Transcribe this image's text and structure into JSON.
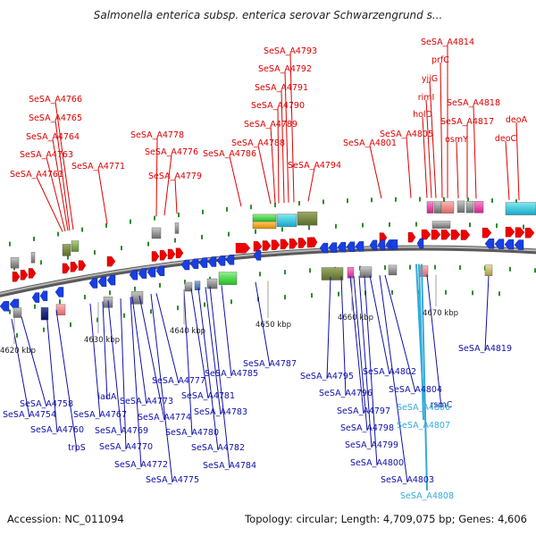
{
  "title": "Salmonella enterica subsp. enterica serovar Schwarzengrund s...",
  "footer": {
    "accession": "Accession: NC_011094",
    "summary": "Topology: circular; Length: 4,709,075 bp; Genes: 4,606"
  },
  "scale_ticks": [
    "4620 kbp",
    "4630 kbp",
    "4640 kbp",
    "4650 kbp",
    "4660 kbp",
    "4670 kbp"
  ],
  "colors": {
    "forward_label": "#dd0000",
    "reverse_label": "#1010aa",
    "highlight_label": "#33aadd",
    "forward_arrow": "#ee0000",
    "reverse_arrow": "#1a3fe0",
    "backbone": "#7d7d7d"
  },
  "forward_genes": [
    "SeSA_A4761",
    "SeSA_A4763",
    "SeSA_A4764",
    "SeSA_A4765",
    "SeSA_A4766",
    "SeSA_A4771",
    "SeSA_A4776",
    "SeSA_A4778",
    "SeSA_A4779",
    "SeSA_A4786",
    "SeSA_A4788",
    "SeSA_A4789",
    "SeSA_A4790",
    "SeSA_A4791",
    "SeSA_A4792",
    "SeSA_A4793",
    "SeSA_A4794",
    "SeSA_A4801",
    "SeSA_A4805",
    "holD",
    "rimI",
    "yjjG",
    "prfC",
    "SeSA_A4814",
    "osmY",
    "SeSA_A4817",
    "SeSA_A4818",
    "deoC",
    "deoA"
  ],
  "reverse_genes": [
    "SeSA_A4754",
    "SeSA_A4758",
    "SeSA_A4760",
    "trpS",
    "SeSA_A4767",
    "iadA",
    "SeSA_A4769",
    "SeSA_A4770",
    "SeSA_A4772",
    "SeSA_A4773",
    "SeSA_A4774",
    "SeSA_A4775",
    "SeSA_A4777",
    "SeSA_A4780",
    "SeSA_A4781",
    "SeSA_A4782",
    "SeSA_A4783",
    "SeSA_A4784",
    "SeSA_A4785",
    "SeSA_A4787",
    "SeSA_A4795",
    "SeSA_A4796",
    "SeSA_A4797",
    "SeSA_A4798",
    "SeSA_A4799",
    "SeSA_A4800",
    "SeSA_A4802",
    "SeSA_A4803",
    "SeSA_A4804",
    "rsmC",
    "SeSA_A4819"
  ],
  "highlighted_genes": [
    "SeSA_A4806",
    "SeSA_A4807",
    "SeSA_A4808"
  ]
}
